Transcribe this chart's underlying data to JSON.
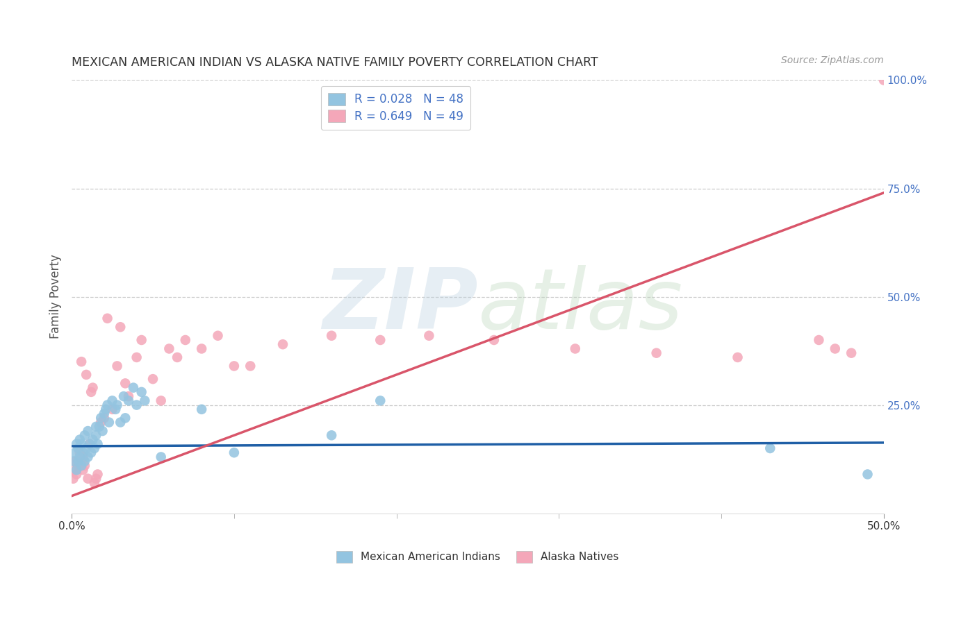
{
  "title": "MEXICAN AMERICAN INDIAN VS ALASKA NATIVE FAMILY POVERTY CORRELATION CHART",
  "source": "Source: ZipAtlas.com",
  "ylabel": "Family Poverty",
  "xmin": 0.0,
  "xmax": 0.5,
  "ymin": 0.0,
  "ymax": 1.0,
  "watermark_zip": "ZIP",
  "watermark_atlas": "atlas",
  "legend_blue_label": "R = 0.028   N = 48",
  "legend_pink_label": "R = 0.649   N = 49",
  "legend_bottom_blue": "Mexican American Indians",
  "legend_bottom_pink": "Alaska Natives",
  "blue_color": "#93c4e0",
  "pink_color": "#f4a7b9",
  "blue_line_color": "#1f5fa6",
  "pink_line_color": "#d9556a",
  "blue_scatter_x": [
    0.001,
    0.002,
    0.003,
    0.003,
    0.004,
    0.004,
    0.005,
    0.005,
    0.006,
    0.006,
    0.007,
    0.008,
    0.008,
    0.009,
    0.01,
    0.01,
    0.011,
    0.012,
    0.013,
    0.014,
    0.015,
    0.015,
    0.016,
    0.017,
    0.018,
    0.019,
    0.02,
    0.021,
    0.022,
    0.023,
    0.025,
    0.027,
    0.028,
    0.03,
    0.032,
    0.033,
    0.035,
    0.038,
    0.04,
    0.043,
    0.045,
    0.055,
    0.08,
    0.1,
    0.16,
    0.19,
    0.43,
    0.49
  ],
  "blue_scatter_y": [
    0.12,
    0.14,
    0.1,
    0.16,
    0.12,
    0.15,
    0.13,
    0.17,
    0.11,
    0.16,
    0.14,
    0.12,
    0.18,
    0.15,
    0.13,
    0.19,
    0.16,
    0.14,
    0.17,
    0.15,
    0.2,
    0.18,
    0.16,
    0.2,
    0.22,
    0.19,
    0.23,
    0.24,
    0.25,
    0.21,
    0.26,
    0.24,
    0.25,
    0.21,
    0.27,
    0.22,
    0.26,
    0.29,
    0.25,
    0.28,
    0.26,
    0.13,
    0.24,
    0.14,
    0.18,
    0.26,
    0.15,
    0.09
  ],
  "pink_scatter_x": [
    0.001,
    0.002,
    0.002,
    0.003,
    0.004,
    0.005,
    0.006,
    0.007,
    0.007,
    0.008,
    0.009,
    0.01,
    0.011,
    0.012,
    0.013,
    0.014,
    0.015,
    0.016,
    0.018,
    0.02,
    0.022,
    0.025,
    0.028,
    0.03,
    0.033,
    0.035,
    0.04,
    0.043,
    0.05,
    0.055,
    0.06,
    0.065,
    0.07,
    0.08,
    0.09,
    0.1,
    0.11,
    0.13,
    0.16,
    0.19,
    0.22,
    0.26,
    0.31,
    0.36,
    0.41,
    0.46,
    0.47,
    0.48,
    0.5
  ],
  "pink_scatter_y": [
    0.08,
    0.1,
    0.12,
    0.09,
    0.11,
    0.14,
    0.35,
    0.1,
    0.13,
    0.11,
    0.32,
    0.08,
    0.16,
    0.28,
    0.29,
    0.07,
    0.08,
    0.09,
    0.21,
    0.22,
    0.45,
    0.24,
    0.34,
    0.43,
    0.3,
    0.27,
    0.36,
    0.4,
    0.31,
    0.26,
    0.38,
    0.36,
    0.4,
    0.38,
    0.41,
    0.34,
    0.34,
    0.39,
    0.41,
    0.4,
    0.41,
    0.4,
    0.38,
    0.37,
    0.36,
    0.4,
    0.38,
    0.37,
    1.0
  ],
  "blue_line_x": [
    0.0,
    0.5
  ],
  "blue_line_y": [
    0.155,
    0.163
  ],
  "pink_line_x": [
    0.0,
    0.5
  ],
  "pink_line_y": [
    0.04,
    0.74
  ],
  "grid_yticks": [
    0.0,
    0.25,
    0.5,
    0.75,
    1.0
  ],
  "grid_ytick_labels_right": [
    "",
    "25.0%",
    "50.0%",
    "75.0%",
    "100.0%"
  ],
  "grid_color": "#cccccc",
  "bg_color": "#ffffff",
  "title_color": "#333333",
  "source_color": "#999999",
  "right_tick_color": "#4472c4",
  "legend_text_color": "#4472c4"
}
